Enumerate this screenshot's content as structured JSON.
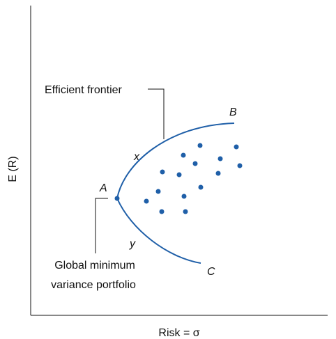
{
  "axes": {
    "y_label": "E (R)",
    "x_label": "Risk = σ"
  },
  "annotations": {
    "efficient_frontier": "Efficient frontier",
    "global_minimum_line1": "Global minimum",
    "global_minimum_line2": "variance portfolio"
  },
  "point_labels": {
    "a": "A",
    "b": "B",
    "c": "C",
    "x": "x",
    "y": "y"
  },
  "colors": {
    "curve": "#1f5fa8",
    "dots": "#1f5fa8",
    "axis": "#111111"
  }
}
